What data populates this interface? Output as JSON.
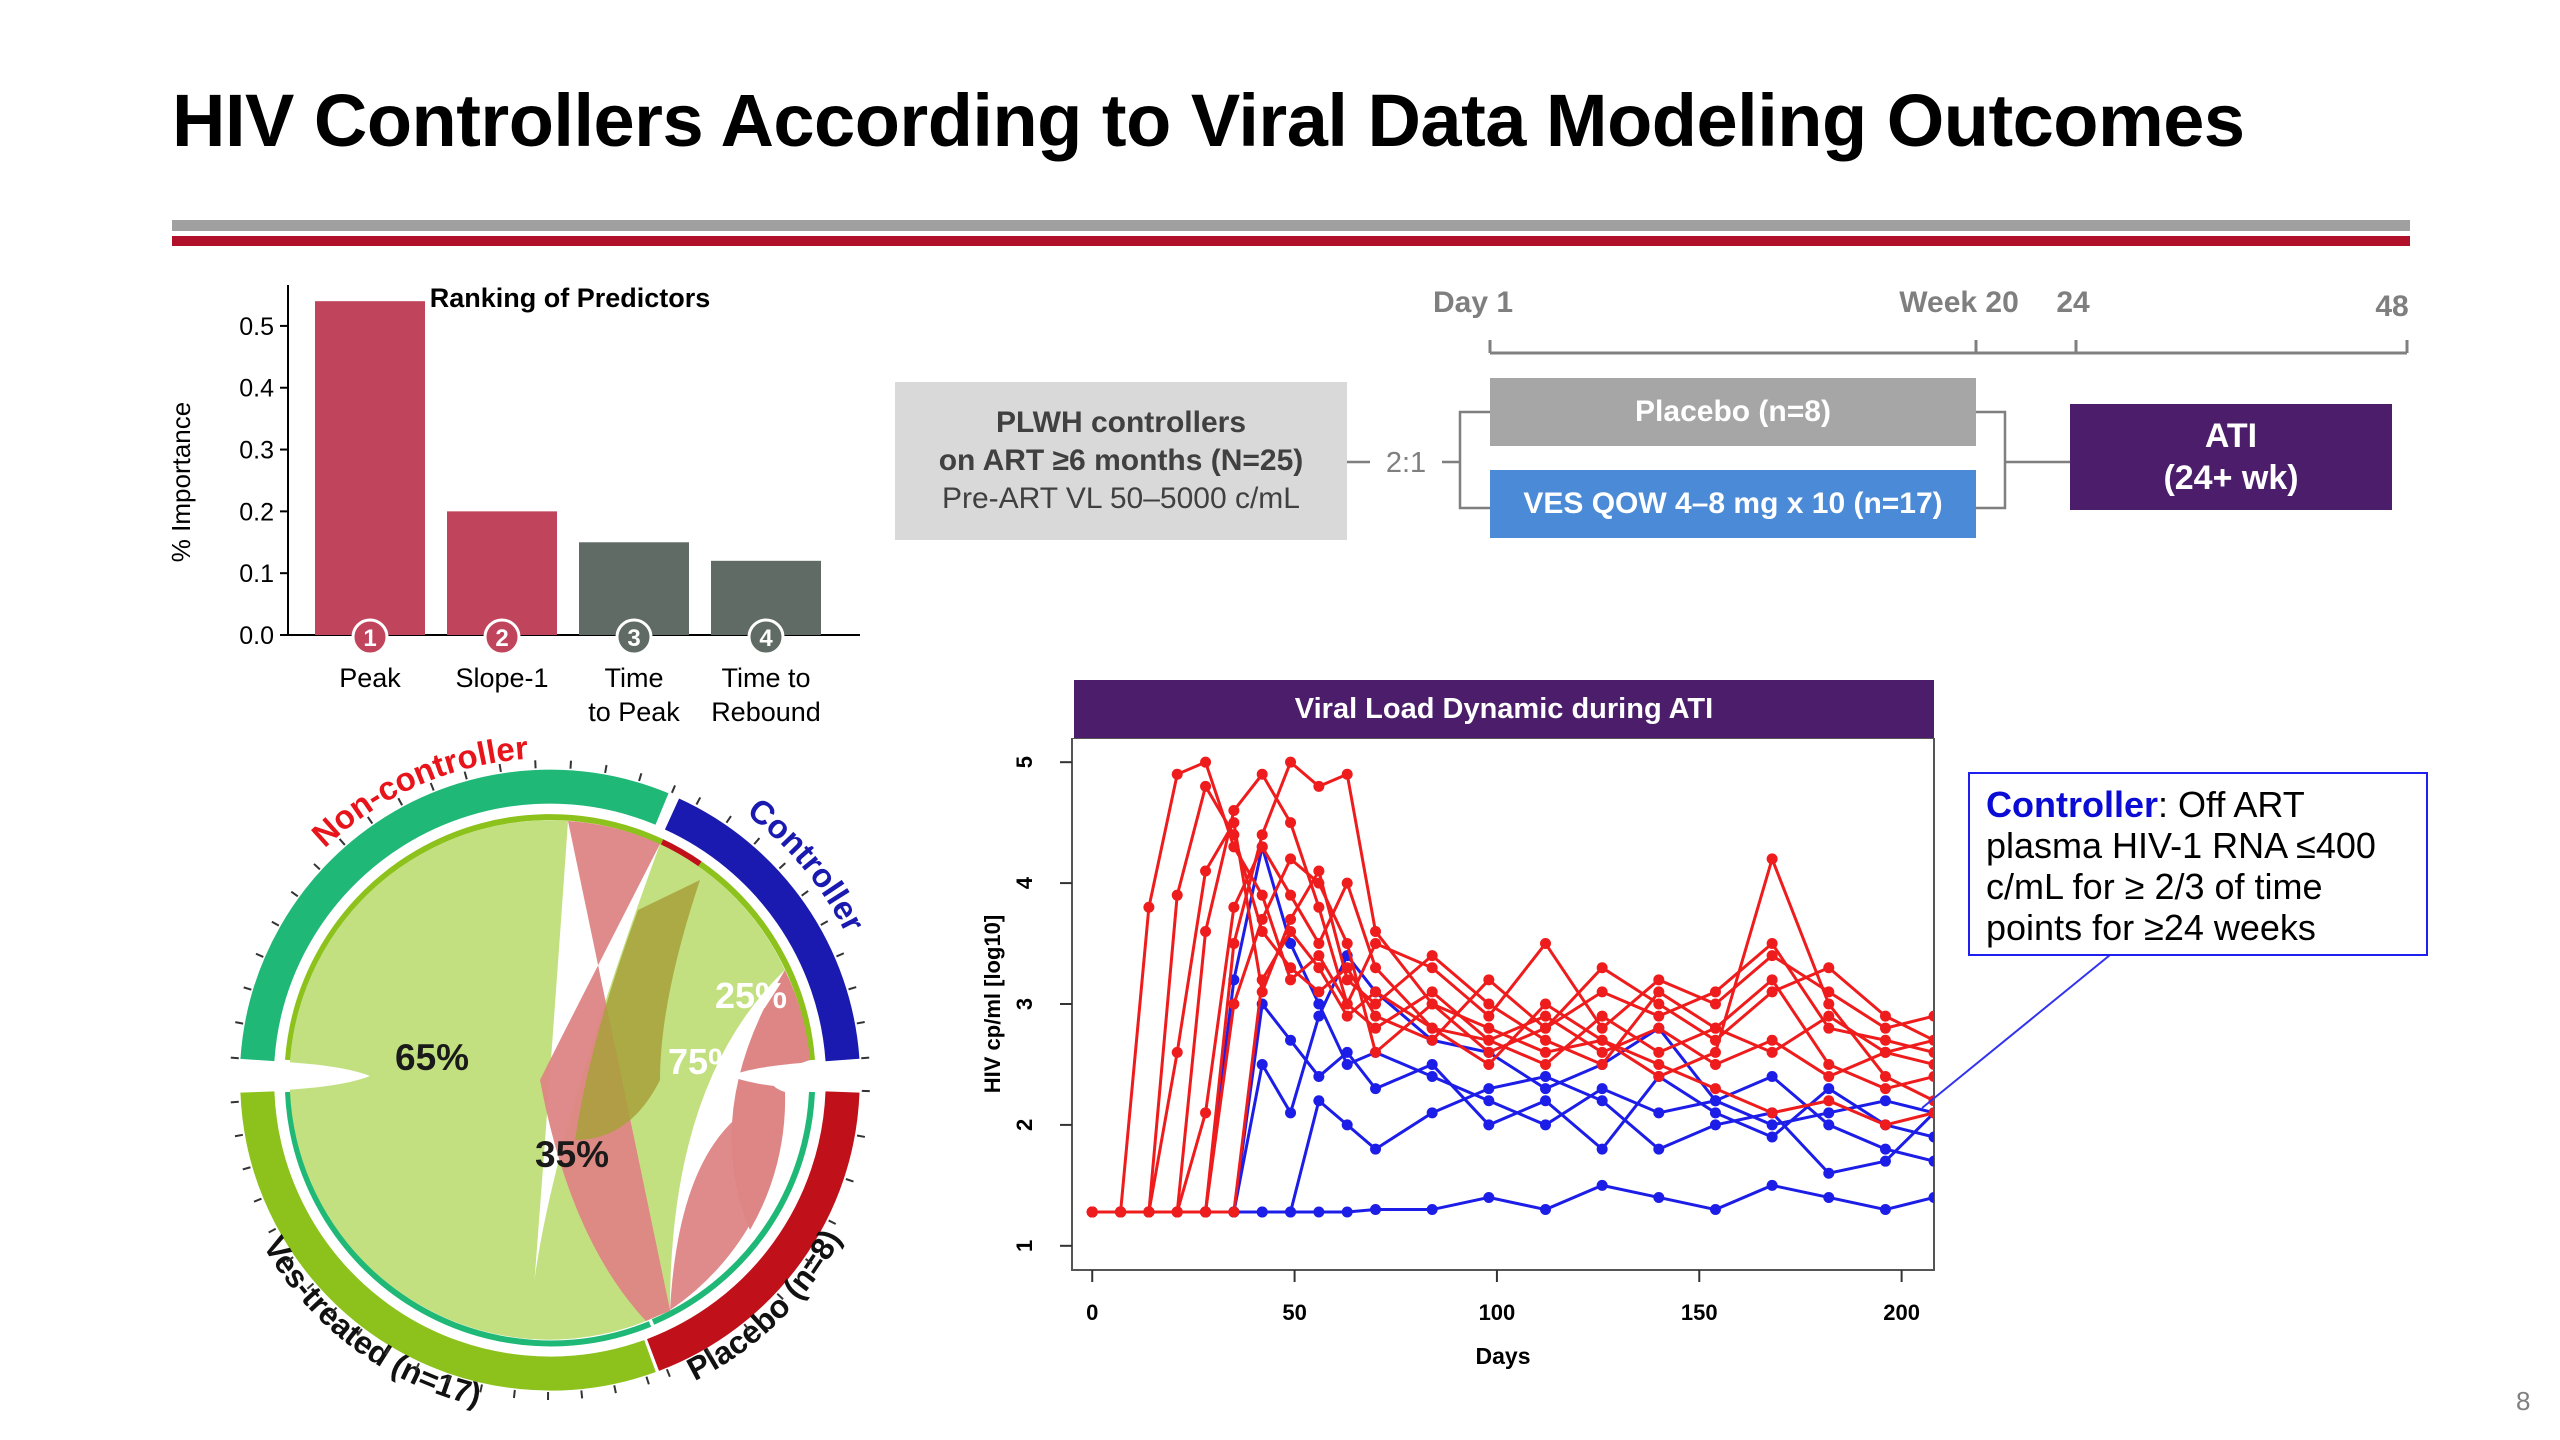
{
  "slide": {
    "title": "HIV Controllers According to Viral Data Modeling Outcomes",
    "page_number": "8"
  },
  "study_design": {
    "timeline": {
      "day1": "Day 1",
      "week20": "Week 20",
      "w24": "24",
      "w48": "48"
    },
    "plwh": {
      "line1": "PLWH controllers",
      "line2": "on ART ≥6 months (N=25)",
      "line3": "Pre-ART VL 50–5000 c/mL"
    },
    "ratio": "2:1",
    "arm_placebo": "Placebo (n=8)",
    "arm_ves": "VES QOW 4–8 mg x 10 (n=17)",
    "ati_line1": "ATI",
    "ati_line2": "(24+ wk)",
    "colors": {
      "placebo": "#a6a6a6",
      "ves": "#4a8ad6",
      "ati": "#4b1d6a",
      "plwh": "#d9d9d9"
    }
  },
  "controller_def": {
    "keyword": "Controller",
    "text": ": Off ART plasma HIV-1 RNA ≤400 c/mL for ≥ 2/3 of time points for ≥24 weeks"
  },
  "chord": {
    "labels": {
      "noncontroller": "Non-controller",
      "controller": "Controller",
      "ves": "Ves-treated (n=17)",
      "placebo": "Placebo (n=8)"
    },
    "pct": {
      "ves_nc": "65%",
      "ves_c": "35%",
      "pl_nc": "75%",
      "pl_c": "25%"
    },
    "colors": {
      "noncontroller": "#1fb877",
      "controller": "#1a1ab0",
      "ves": "#8cc21b",
      "placebo": "#c0101a"
    }
  },
  "chart_data": [
    {
      "type": "bar",
      "title": "Ranking of Predictors",
      "ylabel": "% Importance",
      "xlabel": "",
      "categories": [
        "Peak",
        "Slope-1",
        "Time to Peak",
        "Time to Rebound"
      ],
      "category_lines": [
        [
          "Peak"
        ],
        [
          "Slope-1"
        ],
        [
          "Time",
          "to Peak"
        ],
        [
          "Time to",
          "Rebound"
        ]
      ],
      "ranks": [
        "1",
        "2",
        "3",
        "4"
      ],
      "values": [
        0.54,
        0.2,
        0.15,
        0.12
      ],
      "bar_colors": [
        "#c0455c",
        "#c0455c",
        "#5f6b64",
        "#5f6b64"
      ],
      "ylim": [
        0,
        0.55
      ],
      "yticks": [
        0.0,
        0.1,
        0.2,
        0.3,
        0.4,
        0.5
      ],
      "ytick_labels": [
        "0.0",
        "0.1",
        "0.2",
        "0.3",
        "0.4",
        "0.5"
      ]
    },
    {
      "type": "line",
      "title": "Viral Load Dynamic during ATI",
      "xlabel": "Days",
      "ylabel": "HIV cp/ml [log10]",
      "xlim": [
        -5,
        208
      ],
      "ylim": [
        0.8,
        5.2
      ],
      "xticks": [
        0,
        50,
        100,
        150,
        200
      ],
      "yticks": [
        1,
        2,
        3,
        4,
        5
      ],
      "series_colors": {
        "noncontroller": "#ee1c1c",
        "controller": "#1d1de8"
      },
      "series": [
        {
          "group": "noncontroller",
          "x": [
            0,
            7,
            14,
            21,
            28,
            35,
            42,
            49,
            56,
            63,
            70,
            84,
            98,
            112,
            126,
            140,
            154,
            168,
            182,
            196,
            208
          ],
          "y": [
            1.28,
            1.28,
            3.8,
            4.9,
            5.0,
            4.3,
            3.9,
            3.2,
            3.4,
            3.0,
            2.8,
            3.1,
            2.7,
            2.9,
            2.6,
            2.8,
            2.5,
            2.7,
            2.4,
            2.6,
            2.5
          ]
        },
        {
          "group": "noncontroller",
          "x": [
            0,
            7,
            14,
            21,
            28,
            35,
            42,
            49,
            56,
            63,
            70,
            84,
            98,
            112,
            126,
            140,
            154,
            168,
            182,
            196,
            208
          ],
          "y": [
            1.28,
            1.28,
            1.28,
            3.9,
            4.8,
            4.4,
            3.6,
            3.3,
            3.1,
            3.3,
            2.9,
            2.7,
            3.2,
            2.8,
            3.3,
            3.0,
            2.7,
            3.1,
            3.3,
            2.9,
            2.7
          ]
        },
        {
          "group": "noncontroller",
          "x": [
            0,
            7,
            14,
            21,
            28,
            35,
            42,
            49,
            56,
            63,
            70,
            84,
            98,
            112,
            126,
            140,
            154,
            168,
            182,
            196,
            208
          ],
          "y": [
            1.28,
            1.28,
            1.28,
            1.28,
            3.6,
            4.6,
            4.9,
            4.5,
            3.8,
            3.0,
            3.5,
            3.3,
            2.9,
            3.5,
            2.8,
            3.2,
            3.0,
            3.4,
            3.1,
            2.8,
            2.9
          ]
        },
        {
          "group": "noncontroller",
          "x": [
            0,
            7,
            14,
            21,
            28,
            35,
            42,
            49,
            56,
            63,
            70,
            84,
            98,
            112,
            126,
            140,
            154,
            168,
            182,
            196,
            208
          ],
          "y": [
            1.28,
            1.28,
            1.28,
            1.28,
            1.28,
            3.5,
            4.4,
            5.0,
            4.8,
            4.9,
            3.6,
            3.0,
            2.6,
            2.8,
            3.1,
            2.9,
            3.1,
            3.5,
            2.8,
            2.7,
            2.6
          ]
        },
        {
          "group": "noncontroller",
          "x": [
            0,
            7,
            14,
            21,
            28,
            35,
            42,
            49,
            56,
            63,
            70,
            84,
            98,
            112,
            126,
            140,
            154,
            168,
            182,
            196,
            208
          ],
          "y": [
            1.28,
            1.28,
            1.28,
            1.28,
            2.1,
            3.8,
            4.3,
            3.9,
            3.5,
            4.0,
            3.3,
            2.8,
            2.7,
            2.5,
            2.9,
            2.6,
            2.8,
            2.6,
            2.9,
            2.6,
            2.7
          ]
        },
        {
          "group": "noncontroller",
          "x": [
            0,
            7,
            14,
            21,
            28,
            35,
            42,
            49,
            56,
            63,
            70,
            84,
            98,
            112,
            126,
            140,
            154,
            168,
            182,
            196,
            208
          ],
          "y": [
            1.28,
            1.28,
            1.28,
            2.6,
            4.1,
            4.5,
            3.1,
            3.7,
            4.1,
            3.2,
            3.0,
            3.4,
            3.0,
            2.7,
            2.5,
            3.1,
            2.8,
            3.2,
            2.5,
            2.3,
            2.4
          ]
        },
        {
          "group": "noncontroller",
          "x": [
            0,
            7,
            14,
            21,
            28,
            35,
            42,
            49,
            56,
            63,
            70,
            84,
            98,
            112,
            126,
            140,
            154,
            168,
            182,
            196,
            208
          ],
          "y": [
            1.28,
            1.28,
            1.28,
            1.28,
            1.28,
            3.0,
            3.7,
            4.2,
            4.0,
            3.5,
            2.6,
            3.0,
            2.8,
            2.6,
            2.7,
            2.4,
            2.6,
            4.2,
            3.0,
            2.4,
            2.2
          ]
        },
        {
          "group": "noncontroller",
          "x": [
            0,
            7,
            14,
            21,
            28,
            35,
            42,
            49,
            56,
            63,
            70,
            84,
            98,
            112,
            126,
            140,
            154,
            168,
            182,
            196,
            208
          ],
          "y": [
            1.28,
            1.28,
            1.28,
            1.28,
            1.28,
            1.28,
            3.2,
            3.6,
            3.3,
            2.9,
            3.1,
            2.8,
            2.5,
            3.0,
            2.7,
            2.5,
            2.3,
            2.1,
            2.2,
            2.0,
            2.1
          ]
        },
        {
          "group": "controller",
          "x": [
            0,
            7,
            14,
            21,
            28,
            35,
            42,
            49,
            56,
            63,
            70,
            84,
            98,
            112,
            126,
            140,
            154,
            168,
            182,
            196,
            208
          ],
          "y": [
            1.28,
            1.28,
            1.28,
            1.28,
            1.28,
            3.2,
            4.3,
            3.5,
            3.0,
            2.5,
            2.6,
            2.4,
            2.2,
            2.0,
            2.3,
            2.1,
            2.2,
            2.0,
            2.1,
            2.2,
            2.1
          ]
        },
        {
          "group": "controller",
          "x": [
            0,
            7,
            14,
            21,
            28,
            35,
            42,
            49,
            56,
            63,
            70,
            84,
            98,
            112,
            126,
            140,
            154,
            168,
            182,
            196,
            208
          ],
          "y": [
            1.28,
            1.28,
            1.28,
            1.28,
            1.28,
            1.28,
            3.0,
            2.7,
            2.4,
            2.6,
            2.3,
            2.5,
            2.0,
            2.2,
            1.8,
            2.4,
            2.1,
            1.9,
            2.3,
            2.0,
            1.9
          ]
        },
        {
          "group": "controller",
          "x": [
            0,
            7,
            14,
            21,
            28,
            35,
            42,
            49,
            56,
            63,
            70,
            84,
            98,
            112,
            126,
            140,
            154,
            168,
            182,
            196,
            208
          ],
          "y": [
            1.28,
            1.28,
            1.28,
            1.28,
            1.28,
            1.28,
            2.5,
            2.1,
            2.9,
            3.4,
            3.1,
            2.7,
            2.6,
            2.3,
            2.5,
            2.8,
            2.2,
            2.4,
            2.0,
            1.8,
            1.7
          ]
        },
        {
          "group": "controller",
          "x": [
            0,
            7,
            14,
            21,
            28,
            35,
            42,
            49,
            56,
            63,
            70,
            84,
            98,
            112,
            126,
            140,
            154,
            168,
            182,
            196,
            208
          ],
          "y": [
            1.28,
            1.28,
            1.28,
            1.28,
            1.28,
            1.28,
            1.28,
            1.28,
            1.28,
            1.28,
            1.3,
            1.3,
            1.4,
            1.3,
            1.5,
            1.4,
            1.3,
            1.5,
            1.4,
            1.3,
            1.4
          ]
        },
        {
          "group": "controller",
          "x": [
            0,
            7,
            14,
            21,
            28,
            35,
            42,
            49,
            56,
            63,
            70,
            84,
            98,
            112,
            126,
            140,
            154,
            168,
            182,
            196,
            208
          ],
          "y": [
            1.28,
            1.28,
            1.28,
            1.28,
            1.28,
            1.28,
            1.28,
            1.28,
            2.2,
            2.0,
            1.8,
            2.1,
            2.3,
            2.4,
            2.2,
            1.8,
            2.0,
            2.1,
            1.6,
            1.7,
            2.1
          ]
        }
      ]
    }
  ]
}
